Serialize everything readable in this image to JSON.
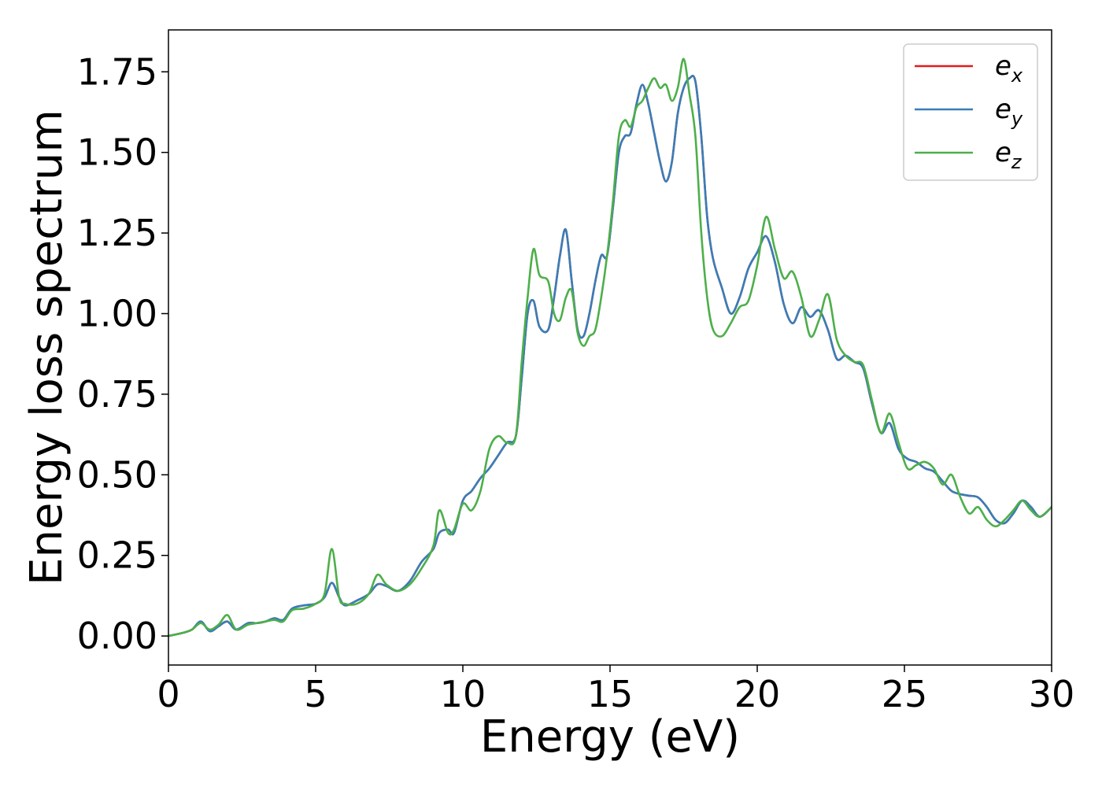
{
  "chart_data": {
    "type": "line",
    "title": "",
    "xlabel": "Energy (eV)",
    "ylabel": "Energy loss spectrum",
    "xlim": [
      0,
      30
    ],
    "ylim": [
      -0.09,
      1.88
    ],
    "xticks": [
      0,
      5,
      10,
      15,
      20,
      25,
      30
    ],
    "xtick_labels": [
      "0",
      "5",
      "10",
      "15",
      "20",
      "25",
      "30"
    ],
    "yticks": [
      0.0,
      0.25,
      0.5,
      0.75,
      1.0,
      1.25,
      1.5,
      1.75
    ],
    "ytick_labels": [
      "0.00",
      "0.25",
      "0.50",
      "0.75",
      "1.00",
      "1.25",
      "1.50",
      "1.75"
    ],
    "grid": false,
    "legend_position": "top-right",
    "series": [
      {
        "name": "e",
        "subscript": "x",
        "color": "#e41a1c",
        "x": [
          0,
          0.5,
          0.8,
          1.1,
          1.4,
          1.7,
          2.0,
          2.3,
          2.7,
          3.0,
          3.3,
          3.6,
          3.9,
          4.2,
          4.6,
          5.0,
          5.3,
          5.55,
          5.8,
          6.0,
          6.4,
          6.8,
          7.1,
          7.4,
          7.8,
          8.2,
          8.6,
          9.0,
          9.2,
          9.5,
          9.7,
          10.0,
          10.3,
          10.6,
          10.9,
          11.2,
          11.5,
          11.8,
          12.0,
          12.2,
          12.4,
          12.6,
          12.9,
          13.1,
          13.3,
          13.5,
          13.7,
          13.9,
          14.1,
          14.3,
          14.5,
          14.7,
          14.9,
          15.1,
          15.3,
          15.5,
          15.7,
          15.9,
          16.1,
          16.3,
          16.5,
          16.7,
          16.9,
          17.1,
          17.3,
          17.5,
          17.7,
          17.9,
          18.1,
          18.3,
          18.5,
          18.8,
          19.1,
          19.4,
          19.7,
          20.0,
          20.3,
          20.6,
          20.9,
          21.2,
          21.5,
          21.8,
          22.1,
          22.4,
          22.7,
          23.0,
          23.3,
          23.6,
          23.9,
          24.2,
          24.5,
          24.8,
          25.1,
          25.4,
          25.7,
          26.0,
          26.3,
          26.6,
          26.9,
          27.2,
          27.5,
          27.8,
          28.1,
          28.4,
          28.7,
          29.0,
          29.3,
          29.6,
          30.0
        ],
        "y": [
          0.0,
          0.01,
          0.02,
          0.045,
          0.015,
          0.03,
          0.045,
          0.02,
          0.04,
          0.04,
          0.045,
          0.055,
          0.05,
          0.085,
          0.095,
          0.1,
          0.12,
          0.165,
          0.12,
          0.095,
          0.11,
          0.13,
          0.16,
          0.155,
          0.14,
          0.17,
          0.23,
          0.27,
          0.32,
          0.33,
          0.32,
          0.42,
          0.45,
          0.49,
          0.52,
          0.56,
          0.6,
          0.62,
          0.8,
          1.0,
          1.04,
          0.96,
          0.95,
          1.05,
          1.18,
          1.26,
          1.1,
          0.95,
          0.93,
          1.0,
          1.1,
          1.18,
          1.18,
          1.33,
          1.5,
          1.55,
          1.56,
          1.65,
          1.71,
          1.65,
          1.56,
          1.47,
          1.41,
          1.47,
          1.62,
          1.7,
          1.73,
          1.72,
          1.55,
          1.3,
          1.17,
          1.08,
          1.0,
          1.05,
          1.14,
          1.19,
          1.24,
          1.16,
          1.03,
          0.97,
          1.02,
          0.99,
          1.01,
          0.95,
          0.86,
          0.87,
          0.85,
          0.83,
          0.72,
          0.63,
          0.66,
          0.58,
          0.55,
          0.54,
          0.52,
          0.51,
          0.48,
          0.45,
          0.44,
          0.435,
          0.43,
          0.4,
          0.36,
          0.35,
          0.38,
          0.42,
          0.4,
          0.37,
          0.4
        ]
      },
      {
        "name": "e",
        "subscript": "y",
        "color": "#377eb8",
        "x": [
          0,
          0.5,
          0.8,
          1.1,
          1.4,
          1.7,
          2.0,
          2.3,
          2.7,
          3.0,
          3.3,
          3.6,
          3.9,
          4.2,
          4.6,
          5.0,
          5.3,
          5.55,
          5.8,
          6.0,
          6.4,
          6.8,
          7.1,
          7.4,
          7.8,
          8.2,
          8.6,
          9.0,
          9.2,
          9.5,
          9.7,
          10.0,
          10.3,
          10.6,
          10.9,
          11.2,
          11.5,
          11.8,
          12.0,
          12.2,
          12.4,
          12.6,
          12.9,
          13.1,
          13.3,
          13.5,
          13.7,
          13.9,
          14.1,
          14.3,
          14.5,
          14.7,
          14.9,
          15.1,
          15.3,
          15.5,
          15.7,
          15.9,
          16.1,
          16.3,
          16.5,
          16.7,
          16.9,
          17.1,
          17.3,
          17.5,
          17.7,
          17.9,
          18.1,
          18.3,
          18.5,
          18.8,
          19.1,
          19.4,
          19.7,
          20.0,
          20.3,
          20.6,
          20.9,
          21.2,
          21.5,
          21.8,
          22.1,
          22.4,
          22.7,
          23.0,
          23.3,
          23.6,
          23.9,
          24.2,
          24.5,
          24.8,
          25.1,
          25.4,
          25.7,
          26.0,
          26.3,
          26.6,
          26.9,
          27.2,
          27.5,
          27.8,
          28.1,
          28.4,
          28.7,
          29.0,
          29.3,
          29.6,
          30.0
        ],
        "y": [
          0.0,
          0.01,
          0.02,
          0.045,
          0.015,
          0.03,
          0.045,
          0.02,
          0.04,
          0.04,
          0.045,
          0.055,
          0.05,
          0.085,
          0.095,
          0.1,
          0.12,
          0.165,
          0.12,
          0.095,
          0.11,
          0.13,
          0.16,
          0.155,
          0.14,
          0.17,
          0.23,
          0.27,
          0.32,
          0.33,
          0.32,
          0.42,
          0.45,
          0.49,
          0.52,
          0.56,
          0.6,
          0.62,
          0.8,
          1.0,
          1.04,
          0.96,
          0.95,
          1.05,
          1.18,
          1.26,
          1.1,
          0.95,
          0.93,
          1.0,
          1.1,
          1.18,
          1.18,
          1.33,
          1.5,
          1.55,
          1.56,
          1.65,
          1.71,
          1.65,
          1.56,
          1.47,
          1.41,
          1.47,
          1.62,
          1.7,
          1.73,
          1.72,
          1.55,
          1.3,
          1.17,
          1.08,
          1.0,
          1.05,
          1.14,
          1.19,
          1.24,
          1.16,
          1.03,
          0.97,
          1.02,
          0.99,
          1.01,
          0.95,
          0.86,
          0.87,
          0.85,
          0.83,
          0.72,
          0.63,
          0.66,
          0.58,
          0.55,
          0.54,
          0.52,
          0.51,
          0.48,
          0.45,
          0.44,
          0.435,
          0.43,
          0.4,
          0.36,
          0.35,
          0.38,
          0.42,
          0.4,
          0.37,
          0.4
        ]
      },
      {
        "name": "e",
        "subscript": "z",
        "color": "#4daf4a",
        "x": [
          0,
          0.5,
          0.8,
          1.1,
          1.4,
          1.7,
          2.0,
          2.3,
          2.7,
          3.0,
          3.3,
          3.6,
          3.9,
          4.2,
          4.6,
          5.0,
          5.3,
          5.55,
          5.8,
          6.0,
          6.4,
          6.8,
          7.1,
          7.4,
          7.8,
          8.2,
          8.6,
          9.0,
          9.2,
          9.5,
          9.7,
          10.0,
          10.3,
          10.6,
          10.9,
          11.2,
          11.5,
          11.8,
          12.0,
          12.2,
          12.4,
          12.6,
          12.9,
          13.1,
          13.3,
          13.5,
          13.7,
          13.9,
          14.1,
          14.3,
          14.5,
          14.7,
          14.9,
          15.1,
          15.3,
          15.5,
          15.7,
          15.9,
          16.1,
          16.3,
          16.5,
          16.7,
          16.9,
          17.1,
          17.3,
          17.5,
          17.7,
          17.9,
          18.1,
          18.3,
          18.5,
          18.8,
          19.1,
          19.4,
          19.7,
          20.0,
          20.3,
          20.6,
          20.9,
          21.2,
          21.5,
          21.8,
          22.1,
          22.4,
          22.7,
          23.0,
          23.3,
          23.6,
          23.9,
          24.2,
          24.5,
          24.8,
          25.1,
          25.4,
          25.7,
          26.0,
          26.3,
          26.6,
          26.9,
          27.2,
          27.5,
          27.8,
          28.1,
          28.4,
          28.7,
          29.0,
          29.3,
          29.6,
          30.0
        ],
        "y": [
          0.0,
          0.01,
          0.02,
          0.04,
          0.02,
          0.035,
          0.065,
          0.02,
          0.035,
          0.04,
          0.045,
          0.05,
          0.045,
          0.08,
          0.085,
          0.1,
          0.13,
          0.27,
          0.12,
          0.1,
          0.1,
          0.13,
          0.19,
          0.16,
          0.14,
          0.16,
          0.21,
          0.28,
          0.39,
          0.32,
          0.33,
          0.41,
          0.39,
          0.45,
          0.58,
          0.62,
          0.6,
          0.62,
          0.85,
          1.05,
          1.2,
          1.12,
          1.1,
          1.0,
          0.98,
          1.05,
          1.07,
          0.94,
          0.9,
          0.93,
          0.95,
          1.05,
          1.18,
          1.35,
          1.55,
          1.6,
          1.58,
          1.64,
          1.66,
          1.7,
          1.73,
          1.7,
          1.71,
          1.66,
          1.7,
          1.79,
          1.68,
          1.55,
          1.25,
          1.05,
          0.95,
          0.93,
          0.97,
          1.02,
          1.04,
          1.15,
          1.3,
          1.2,
          1.11,
          1.13,
          1.05,
          0.93,
          0.98,
          1.06,
          0.92,
          0.87,
          0.85,
          0.84,
          0.73,
          0.63,
          0.69,
          0.6,
          0.52,
          0.53,
          0.54,
          0.52,
          0.47,
          0.5,
          0.43,
          0.38,
          0.4,
          0.36,
          0.34,
          0.36,
          0.39,
          0.42,
          0.39,
          0.37,
          0.4
        ]
      }
    ]
  }
}
